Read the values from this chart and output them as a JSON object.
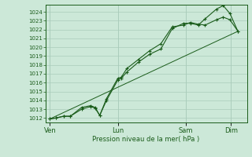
{
  "background_color": "#cce8d8",
  "grid_color": "#aaccbb",
  "line_color": "#1a5c1a",
  "xlabel": "Pression niveau de la mer( hPa )",
  "ylim": [
    1011.5,
    1024.8
  ],
  "yticks": [
    1012,
    1013,
    1014,
    1015,
    1016,
    1017,
    1018,
    1019,
    1020,
    1021,
    1022,
    1023,
    1024
  ],
  "xtick_labels": [
    "Ven",
    "Lun",
    "Sam",
    "Dim"
  ],
  "xtick_positions": [
    0.0,
    3.0,
    6.0,
    8.0
  ],
  "xlim": [
    -0.2,
    8.7
  ],
  "line1_x": [
    0.0,
    0.25,
    0.6,
    0.9,
    1.4,
    1.8,
    2.0,
    2.2,
    2.5,
    3.0,
    3.15,
    3.4,
    3.9,
    4.4,
    4.9,
    5.4,
    5.9,
    6.2,
    6.55,
    6.85,
    7.35,
    7.65,
    7.95,
    8.3
  ],
  "line1_y": [
    1011.9,
    1012.0,
    1012.2,
    1012.2,
    1013.0,
    1013.3,
    1013.1,
    1012.3,
    1014.0,
    1016.3,
    1016.5,
    1017.2,
    1018.3,
    1019.2,
    1019.8,
    1022.1,
    1022.7,
    1022.7,
    1022.5,
    1023.2,
    1024.3,
    1024.7,
    1023.8,
    1021.8
  ],
  "line2_x": [
    0.0,
    0.25,
    0.6,
    0.9,
    1.4,
    1.8,
    2.0,
    2.2,
    2.5,
    3.0,
    3.15,
    3.4,
    3.9,
    4.4,
    4.9,
    5.4,
    5.9,
    6.2,
    6.55,
    6.85,
    7.35,
    7.65,
    7.95,
    8.3
  ],
  "line2_y": [
    1011.9,
    1012.0,
    1012.2,
    1012.2,
    1013.2,
    1013.4,
    1013.2,
    1012.3,
    1014.2,
    1016.5,
    1016.6,
    1017.6,
    1018.6,
    1019.6,
    1020.4,
    1022.3,
    1022.5,
    1022.8,
    1022.6,
    1022.5,
    1023.1,
    1023.4,
    1023.1,
    1021.8
  ],
  "line3_x": [
    0.0,
    8.3
  ],
  "line3_y": [
    1011.9,
    1021.8
  ],
  "vline_x": [
    0.0,
    3.0,
    6.0,
    8.0
  ]
}
